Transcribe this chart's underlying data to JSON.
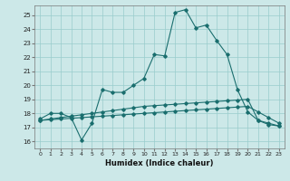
{
  "xlabel": "Humidex (Indice chaleur)",
  "background_color": "#cce8e8",
  "grid_color": "#99cccc",
  "line_color": "#1a6e6e",
  "xlim": [
    -0.5,
    23.5
  ],
  "ylim": [
    15.5,
    25.7
  ],
  "yticks": [
    16,
    17,
    18,
    19,
    20,
    21,
    22,
    23,
    24,
    25
  ],
  "xticks": [
    0,
    1,
    2,
    3,
    4,
    5,
    6,
    7,
    8,
    9,
    10,
    11,
    12,
    13,
    14,
    15,
    16,
    17,
    18,
    19,
    20,
    21,
    22,
    23
  ],
  "line1_x": [
    0,
    1,
    2,
    3,
    4,
    5,
    6,
    7,
    8,
    9,
    10,
    11,
    12,
    13,
    14,
    15,
    16,
    17,
    18,
    19,
    20,
    21,
    22,
    23
  ],
  "line1_y": [
    17.6,
    18.0,
    18.0,
    17.7,
    16.1,
    17.3,
    19.7,
    19.5,
    19.5,
    20.0,
    20.5,
    22.2,
    22.1,
    25.2,
    25.4,
    24.1,
    24.3,
    23.2,
    22.2,
    19.7,
    18.1,
    17.5,
    17.2,
    17.1
  ],
  "line2_x": [
    0,
    1,
    2,
    3,
    4,
    5,
    6,
    7,
    8,
    9,
    10,
    11,
    12,
    13,
    14,
    15,
    16,
    17,
    18,
    19,
    20,
    21,
    22,
    23
  ],
  "line2_y": [
    17.5,
    17.55,
    17.6,
    17.65,
    17.7,
    17.75,
    17.8,
    17.85,
    17.9,
    17.95,
    18.0,
    18.05,
    18.1,
    18.15,
    18.2,
    18.25,
    18.3,
    18.35,
    18.4,
    18.45,
    18.5,
    18.1,
    17.7,
    17.3
  ],
  "line3_x": [
    0,
    1,
    2,
    3,
    4,
    5,
    6,
    7,
    8,
    9,
    10,
    11,
    12,
    13,
    14,
    15,
    16,
    17,
    18,
    19,
    20,
    21,
    22,
    23
  ],
  "line3_y": [
    17.5,
    17.6,
    17.7,
    17.8,
    17.9,
    18.0,
    18.1,
    18.2,
    18.3,
    18.4,
    18.5,
    18.55,
    18.6,
    18.65,
    18.7,
    18.75,
    18.8,
    18.85,
    18.9,
    18.95,
    19.0,
    17.5,
    17.3,
    17.1
  ]
}
